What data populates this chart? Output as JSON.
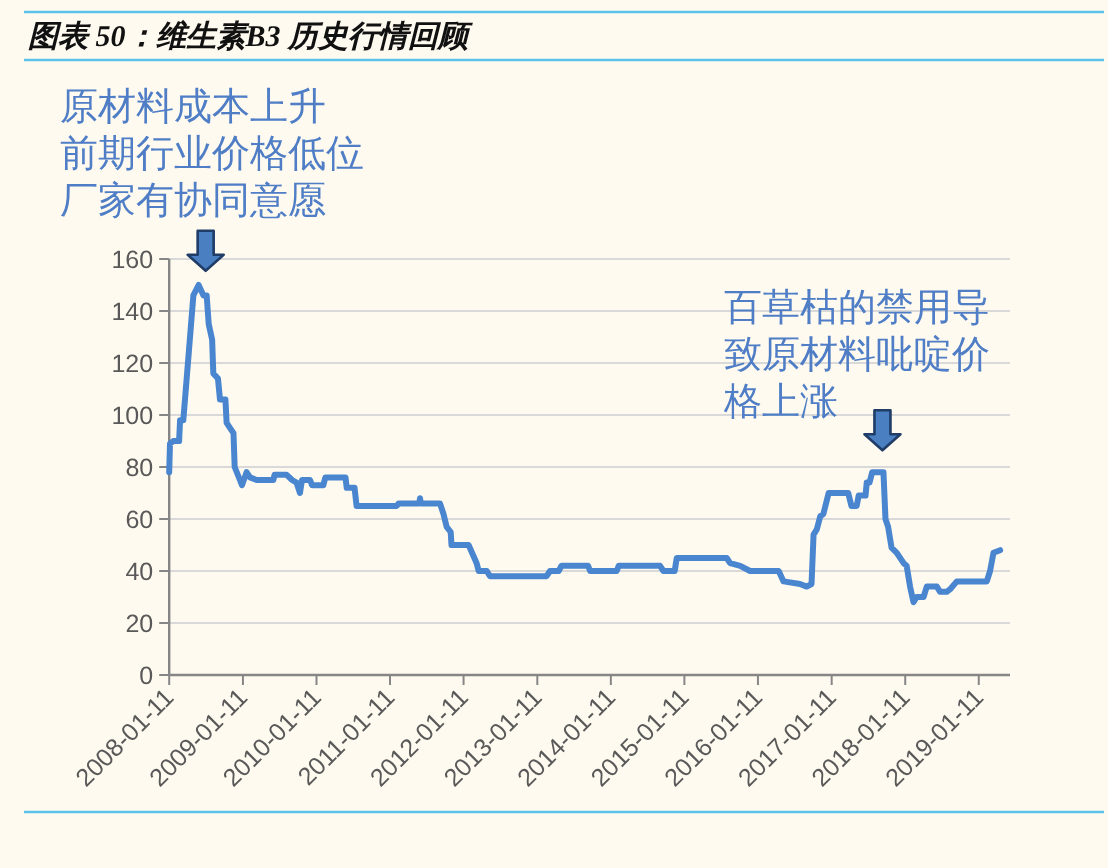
{
  "chart_data": {
    "type": "line",
    "title": "图表 50：维生素B3 历史行情回顾",
    "annotations": [
      {
        "text": "原材料成本上升前期行业价格低位厂家有协同意愿",
        "x": "2008-07-10",
        "y": 147
      },
      {
        "text": "百草枯的禁用导致原材料吡啶价格上涨",
        "x": "2017-09-20",
        "y": 78
      }
    ],
    "x": [
      "2008-01-11",
      "2008-01-15",
      "2008-02-01",
      "2008-02-29",
      "2008-03-05",
      "2008-03-21",
      "2008-05-10",
      "2008-06-05",
      "2008-06-29",
      "2008-07-15",
      "2008-07-25",
      "2008-08-11",
      "2008-08-17",
      "2008-09-09",
      "2008-09-19",
      "2008-10-16",
      "2008-10-22",
      "2008-11-25",
      "2008-12-01",
      "2008-12-27",
      "2009-01-06",
      "2009-01-29",
      "2009-02-15",
      "2009-03-20",
      "2009-06-11",
      "2009-06-17",
      "2009-08-16",
      "2009-09-12",
      "2009-10-04",
      "2009-10-21",
      "2009-10-31",
      "2009-12-10",
      "2009-12-20",
      "2010-02-14",
      "2010-02-24",
      "2010-06-04",
      "2010-06-10",
      "2010-07-19",
      "2010-07-29",
      "2011-02-13",
      "2011-02-23",
      "2011-06-05",
      "2011-06-09",
      "2011-06-13",
      "2011-09-16",
      "2011-10-03",
      "2011-10-19",
      "2011-11-08",
      "2011-11-12",
      "2012-02-05",
      "2012-02-22",
      "2012-03-16",
      "2012-03-26",
      "2012-05-05",
      "2012-05-21",
      "2013-02-26",
      "2013-03-15",
      "2013-04-27",
      "2013-05-11",
      "2013-09-20",
      "2013-09-30",
      "2014-02-09",
      "2014-02-19",
      "2014-09-12",
      "2014-09-29",
      "2014-11-24",
      "2014-12-04",
      "2015-08-09",
      "2015-08-26",
      "2015-10-15",
      "2015-12-03",
      "2016-04-23",
      "2016-05-17",
      "2016-08-07",
      "2016-09-09",
      "2016-10-03",
      "2016-10-13",
      "2016-10-29",
      "2016-11-15",
      "2016-12-01",
      "2016-12-27",
      "2017-04-03",
      "2017-04-19",
      "2017-05-15",
      "2017-05-25",
      "2017-06-28",
      "2017-07-04",
      "2017-07-18",
      "2017-07-31",
      "2017-09-25",
      "2017-10-05",
      "2017-10-18",
      "2017-11-04",
      "2017-11-30",
      "2018-01-03",
      "2018-01-18",
      "2018-02-04",
      "2018-02-21",
      "2018-03-09",
      "2018-04-12",
      "2018-04-28",
      "2018-06-17",
      "2018-07-03",
      "2018-08-05",
      "2018-08-22",
      "2018-09-24",
      "2019-02-20",
      "2019-03-08",
      "2019-03-25",
      "2019-04-27"
    ],
    "series": [
      {
        "color": "#4a86d0",
        "values": [
          78,
          89,
          90,
          90,
          98,
          98,
          146,
          150,
          146,
          146,
          135,
          129,
          116,
          114,
          106,
          106,
          97,
          93,
          80,
          75,
          73,
          78,
          76,
          75,
          75,
          77,
          77,
          75,
          74,
          70,
          75,
          75,
          73,
          73,
          76,
          76,
          72,
          72,
          65,
          65,
          66,
          66,
          68,
          66,
          66,
          62,
          57,
          55,
          50,
          50,
          47,
          43,
          40,
          40,
          38,
          38,
          40,
          40,
          42,
          42,
          40,
          40,
          42,
          42,
          40,
          40,
          45,
          45,
          43,
          42,
          40,
          40,
          36,
          35,
          34,
          35,
          54,
          56,
          61,
          62,
          70,
          70,
          65,
          65,
          69,
          69,
          74,
          74,
          78,
          78,
          60,
          57,
          49,
          47,
          43,
          42,
          34,
          28,
          30,
          30,
          34,
          34,
          32,
          32,
          33,
          36,
          36,
          40,
          47,
          48
        ]
      }
    ],
    "xlim": [
      "2008-01-11",
      "2019-06-15"
    ],
    "xticks": [
      "2008-01-11",
      "2009-01-11",
      "2010-01-11",
      "2011-01-11",
      "2012-01-11",
      "2013-01-11",
      "2014-01-11",
      "2015-01-11",
      "2016-01-11",
      "2017-01-11",
      "2018-01-11",
      "2019-01-11"
    ],
    "ylim": [
      0,
      160
    ],
    "yticks": [
      0,
      20,
      40,
      60,
      80,
      100,
      120,
      140,
      160
    ],
    "grid": "y"
  }
}
